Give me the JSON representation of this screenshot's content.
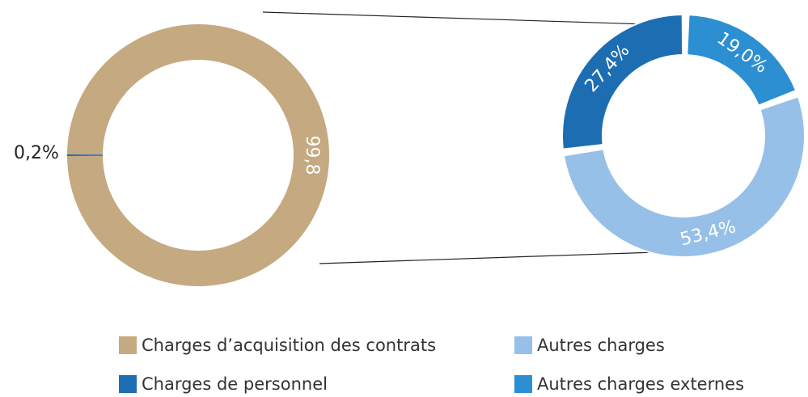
{
  "chart_data": [
    {
      "type": "donut",
      "values": [
        99.8,
        0.2
      ],
      "value_labels": [
        "99,8",
        "0,2%"
      ],
      "colors": [
        "#c4a981",
        "#1d6db3"
      ]
    },
    {
      "type": "donut",
      "values": [
        19.0,
        53.4,
        27.4
      ],
      "value_labels": [
        "19,0%",
        "53,4%",
        "27,4%"
      ],
      "colors": [
        "#2b8fd2",
        "#96c0e8",
        "#1d6db3"
      ]
    }
  ],
  "legend": [
    {
      "name": "Charges d’acquisition des contrats",
      "color": "#c4a981"
    },
    {
      "name": "Autres charges",
      "color": "#96c0e8"
    },
    {
      "name": "Charges de personnel",
      "color": "#1d6db3"
    },
    {
      "name": "Autres charges externes",
      "color": "#2b8fd2"
    }
  ]
}
